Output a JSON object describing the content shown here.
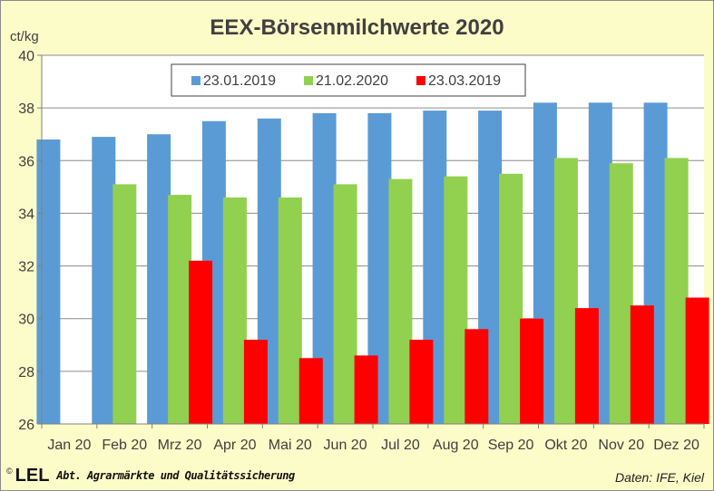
{
  "chart_data": {
    "type": "bar",
    "title": "EEX-Börsenmilchwerte 2020",
    "ylabel": "ct/kg",
    "xlabel": "",
    "ylim": [
      26,
      40
    ],
    "yticks": [
      26,
      28,
      30,
      32,
      34,
      36,
      38,
      40
    ],
    "grid": true,
    "legend_position": "top-center",
    "categories": [
      "Jan 20",
      "Feb 20",
      "Mrz 20",
      "Apr 20",
      "Mai 20",
      "Jun 20",
      "Jul 20",
      "Aug 20",
      "Sep 20",
      "Okt 20",
      "Nov 20",
      "Dez 20"
    ],
    "series": [
      {
        "name": "23.01.2019",
        "color": "#5b9bd5",
        "values": [
          36.8,
          36.9,
          37.0,
          37.5,
          37.6,
          37.8,
          37.8,
          37.9,
          37.9,
          38.2,
          38.2,
          38.2
        ]
      },
      {
        "name": "21.02.2020",
        "color": "#92d050",
        "values": [
          null,
          35.1,
          34.7,
          34.6,
          34.6,
          35.1,
          35.3,
          35.4,
          35.5,
          36.1,
          35.9,
          36.1
        ]
      },
      {
        "name": "23.03.2019",
        "color": "#ff0000",
        "values": [
          null,
          null,
          32.2,
          29.2,
          28.5,
          28.6,
          29.2,
          29.6,
          30.0,
          30.4,
          30.5,
          30.8
        ]
      }
    ]
  },
  "footer": {
    "copyright": "©",
    "logo": "LEL",
    "department": "Abt. Agrarmärkte und Qualitätssicherung",
    "source": "Daten: IFE, Kiel"
  }
}
